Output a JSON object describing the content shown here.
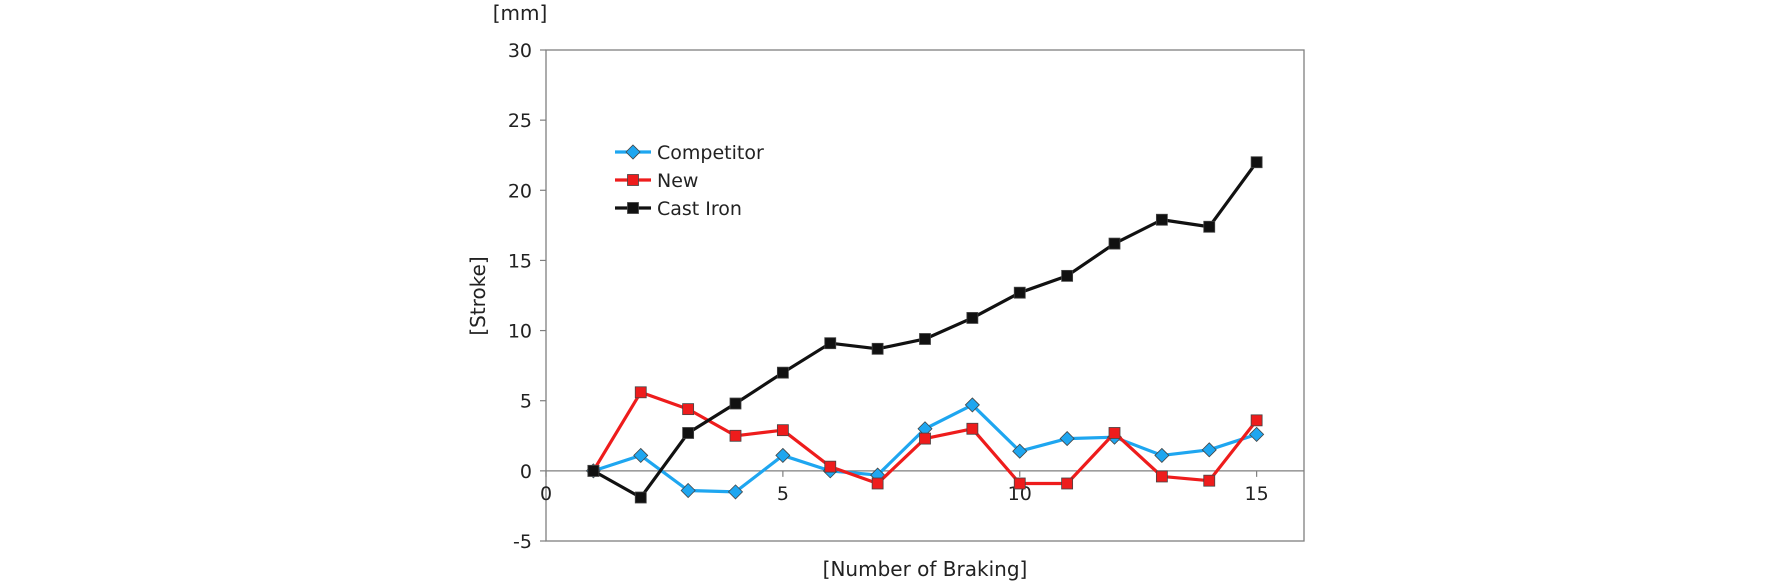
{
  "chart_data": {
    "type": "line",
    "ylabel": "[Stroke]",
    "yunit": "[mm]",
    "xlabel": "[Number of Braking]",
    "xlim": [
      0,
      16
    ],
    "ylim": [
      -5,
      30
    ],
    "xticks": [
      0,
      5,
      10,
      15
    ],
    "yticks": [
      -5,
      0,
      5,
      10,
      15,
      20,
      25,
      30
    ],
    "grid": false,
    "legend_position": "top-left",
    "x": [
      1,
      2,
      3,
      4,
      5,
      6,
      7,
      8,
      9,
      10,
      11,
      12,
      13,
      14,
      15
    ],
    "series": [
      {
        "name": "Competitor",
        "color": "#1ea6f0",
        "marker": "diamond",
        "values": [
          0,
          1.1,
          -1.4,
          -1.5,
          1.1,
          0.0,
          -0.3,
          3.0,
          4.7,
          1.4,
          2.3,
          2.4,
          1.1,
          1.5,
          2.6
        ]
      },
      {
        "name": "New",
        "color": "#ee1c1c",
        "marker": "square",
        "values": [
          0,
          5.6,
          4.4,
          2.5,
          2.9,
          0.3,
          -0.9,
          2.3,
          3.0,
          -0.9,
          -0.9,
          2.7,
          -0.4,
          -0.7,
          3.6
        ]
      },
      {
        "name": "Cast Iron",
        "color": "#111111",
        "marker": "square",
        "values": [
          0,
          -1.9,
          2.7,
          4.8,
          7.0,
          9.1,
          8.7,
          9.4,
          10.9,
          12.7,
          13.9,
          16.2,
          17.9,
          17.4,
          22.0
        ]
      }
    ]
  }
}
